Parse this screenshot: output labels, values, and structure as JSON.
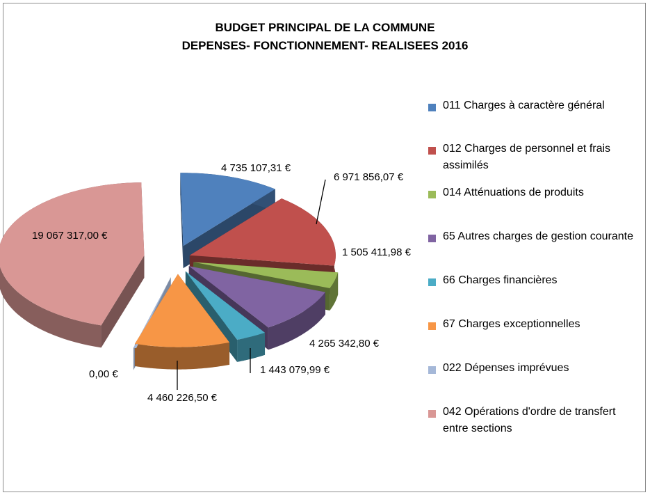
{
  "chart_data": {
    "type": "pie",
    "title_line1": "BUDGET PRINCIPAL DE LA COMMUNE",
    "title_line2": "DEPENSES- FONCTIONNEMENT- REALISEES 2016",
    "categories": [
      "011 Charges à caractère général",
      "012 Charges de personnel et frais assimilés",
      "014 Atténuations de produits",
      "65 Autres charges de gestion courante",
      "66 Charges financières",
      "67 Charges exceptionnelles",
      "022 Dépenses imprévues",
      "042 Opérations d'ordre de transfert entre sections"
    ],
    "values": [
      4735107.31,
      6971856.07,
      1505411.98,
      4265342.8,
      1443079.99,
      4460226.5,
      0.0,
      19067317.0
    ],
    "value_labels": [
      "4 735 107,31 €",
      "6 971 856,07 €",
      "1 505 411,98 €",
      "4 265 342,80 €",
      "1 443 079,99 €",
      "4 460 226,50 €",
      "0,00 €",
      "19 067 317,00 €"
    ],
    "colors": [
      "#4f81bd",
      "#c0504d",
      "#9bbb59",
      "#8064a2",
      "#4bacc6",
      "#f79646",
      "#a5b8d8",
      "#d99795"
    ],
    "exploded": true,
    "legend_position": "right"
  }
}
